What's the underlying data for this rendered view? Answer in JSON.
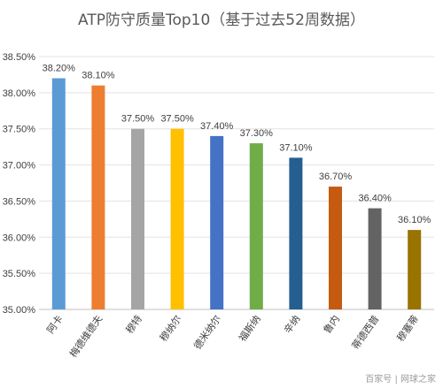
{
  "chart_data": {
    "type": "bar",
    "title": "ATP防守质量Top10（基于过去52周数据）",
    "xlabel": "",
    "ylabel": "",
    "categories": [
      "阿卡",
      "梅德维德夫",
      "穆特",
      "穆纳尔",
      "德米纳尔",
      "福斯纳",
      "辛纳",
      "鲁内",
      "蒂德西普",
      "穆塞蒂"
    ],
    "values": [
      38.2,
      38.1,
      37.5,
      37.5,
      37.4,
      37.3,
      37.1,
      36.7,
      36.4,
      36.1
    ],
    "data_labels": [
      "38.20%",
      "38.10%",
      "37.50%",
      "37.50%",
      "37.40%",
      "37.30%",
      "37.10%",
      "36.70%",
      "36.40%",
      "36.10%"
    ],
    "colors": [
      "#5B9BD5",
      "#ED7D31",
      "#A5A5A5",
      "#FFC000",
      "#4472C4",
      "#70AD47",
      "#255E91",
      "#C55A11",
      "#636363",
      "#997300"
    ],
    "ylim": [
      35.0,
      38.5
    ],
    "yticks": [
      35.0,
      35.5,
      36.0,
      36.5,
      37.0,
      37.5,
      38.0,
      38.5
    ],
    "ytick_labels": [
      "35.00%",
      "35.50%",
      "36.00%",
      "36.50%",
      "37.00%",
      "37.50%",
      "38.00%",
      "38.50%"
    ],
    "grid": true,
    "legend": "none"
  },
  "watermark": "百家号 | 网球之家"
}
